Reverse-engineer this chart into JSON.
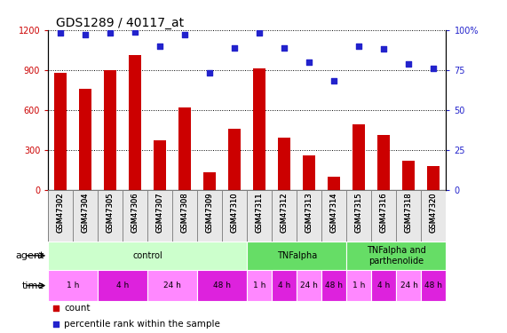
{
  "title": "GDS1289 / 40117_at",
  "samples": [
    "GSM47302",
    "GSM47304",
    "GSM47305",
    "GSM47306",
    "GSM47307",
    "GSM47308",
    "GSM47309",
    "GSM47310",
    "GSM47311",
    "GSM47312",
    "GSM47313",
    "GSM47314",
    "GSM47315",
    "GSM47316",
    "GSM47318",
    "GSM47320"
  ],
  "counts": [
    880,
    760,
    900,
    1010,
    370,
    620,
    130,
    460,
    910,
    390,
    255,
    100,
    490,
    410,
    215,
    175
  ],
  "percentiles": [
    98,
    97,
    98,
    99,
    90,
    97,
    73,
    89,
    98,
    89,
    80,
    68,
    90,
    88,
    79,
    76
  ],
  "bar_color": "#cc0000",
  "dot_color": "#2222cc",
  "ylim_left": [
    0,
    1200
  ],
  "ylim_right": [
    0,
    100
  ],
  "yticks_left": [
    0,
    300,
    600,
    900,
    1200
  ],
  "yticks_right": [
    0,
    25,
    50,
    75,
    100
  ],
  "left_tick_color": "#cc0000",
  "right_tick_color": "#2222cc",
  "agent_groups": [
    {
      "label": "control",
      "start": 0,
      "end": 8,
      "color": "#ccffcc"
    },
    {
      "label": "TNFalpha",
      "start": 8,
      "end": 12,
      "color": "#66dd66"
    },
    {
      "label": "TNFalpha and\nparthenolide",
      "start": 12,
      "end": 16,
      "color": "#66dd66"
    }
  ],
  "time_groups": [
    {
      "label": "1 h",
      "start": 0,
      "end": 2,
      "color": "#ff88ff"
    },
    {
      "label": "4 h",
      "start": 2,
      "end": 4,
      "color": "#dd22dd"
    },
    {
      "label": "24 h",
      "start": 4,
      "end": 6,
      "color": "#ff88ff"
    },
    {
      "label": "48 h",
      "start": 6,
      "end": 8,
      "color": "#dd22dd"
    },
    {
      "label": "1 h",
      "start": 8,
      "end": 9,
      "color": "#ff88ff"
    },
    {
      "label": "4 h",
      "start": 9,
      "end": 10,
      "color": "#dd22dd"
    },
    {
      "label": "24 h",
      "start": 10,
      "end": 11,
      "color": "#ff88ff"
    },
    {
      "label": "48 h",
      "start": 11,
      "end": 12,
      "color": "#dd22dd"
    },
    {
      "label": "1 h",
      "start": 12,
      "end": 13,
      "color": "#ff88ff"
    },
    {
      "label": "4 h",
      "start": 13,
      "end": 14,
      "color": "#dd22dd"
    },
    {
      "label": "24 h",
      "start": 14,
      "end": 15,
      "color": "#ff88ff"
    },
    {
      "label": "48 h",
      "start": 15,
      "end": 16,
      "color": "#dd22dd"
    }
  ],
  "legend_items": [
    {
      "label": "count",
      "color": "#cc0000"
    },
    {
      "label": "percentile rank within the sample",
      "color": "#2222cc"
    }
  ],
  "bar_width": 0.5,
  "dot_size": 18,
  "grid_color": "#000000",
  "grid_linestyle": "dotted",
  "tick_fontsize": 7,
  "label_fontsize": 8,
  "sample_fontsize": 6,
  "title_fontsize": 10
}
